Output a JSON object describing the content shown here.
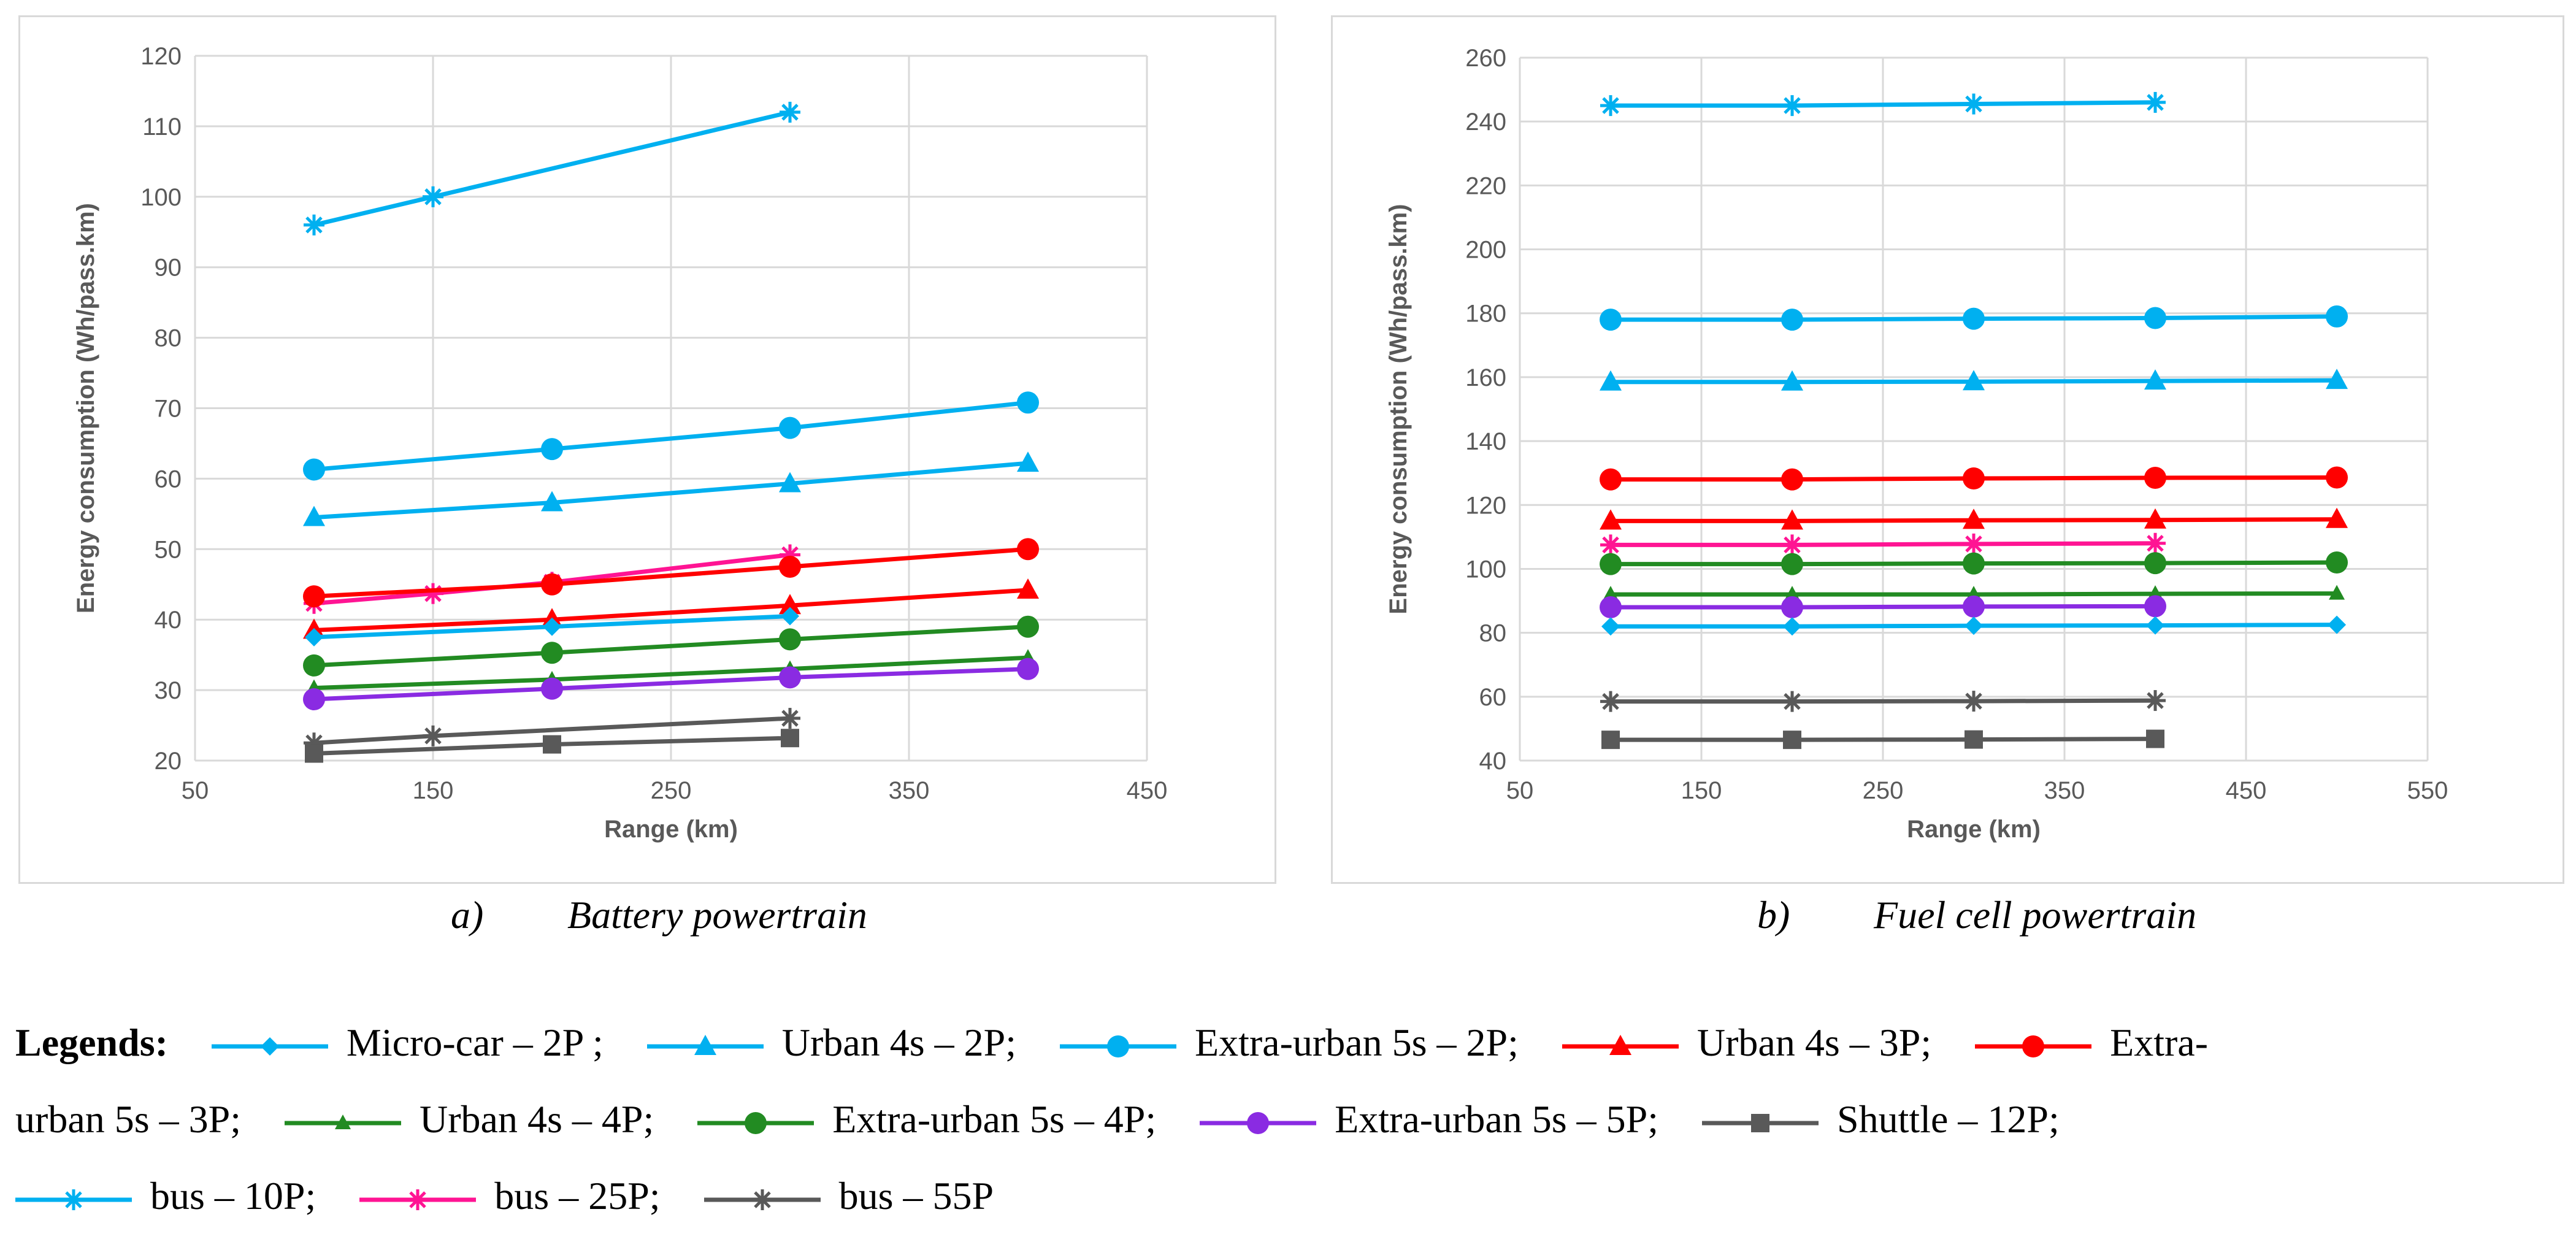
{
  "chart_data": [
    {
      "type": "line",
      "caption_letter": "a)",
      "caption_text": "Battery powertrain",
      "xlabel": "Range (km)",
      "ylabel": "Energy consumption (Wh/pass.km)",
      "xlim": [
        50,
        450
      ],
      "ylim": [
        20,
        120
      ],
      "xticks": [
        50,
        150,
        250,
        350,
        450
      ],
      "yticks": [
        20,
        30,
        40,
        50,
        60,
        70,
        80,
        90,
        100,
        110,
        120
      ],
      "grid": true,
      "series": [
        {
          "name": "bus – 10P",
          "color": "#00b0f0",
          "marker": "asterisk",
          "points": [
            [
              100,
              96
            ],
            [
              150,
              100
            ],
            [
              300,
              112
            ]
          ]
        },
        {
          "name": "Extra-urban 5s – 2P",
          "color": "#00b0f0",
          "marker": "circle",
          "points": [
            [
              100,
              61.3
            ],
            [
              200,
              64.2
            ],
            [
              300,
              67.2
            ],
            [
              400,
              70.8
            ]
          ]
        },
        {
          "name": "Urban 4s – 2P",
          "color": "#00b0f0",
          "marker": "triangle",
          "points": [
            [
              100,
              54.5
            ],
            [
              200,
              56.6
            ],
            [
              300,
              59.3
            ],
            [
              400,
              62.2
            ]
          ]
        },
        {
          "name": "bus – 25P",
          "color": "#ff1493",
          "marker": "asterisk",
          "points": [
            [
              100,
              42.3
            ],
            [
              150,
              43.7
            ],
            [
              200,
              45.3
            ],
            [
              300,
              49.2
            ]
          ]
        },
        {
          "name": "Extra-urban 5s – 3P",
          "color": "#ff0000",
          "marker": "circle",
          "points": [
            [
              100,
              43.3
            ],
            [
              200,
              45.0
            ],
            [
              300,
              47.5
            ],
            [
              400,
              50.0
            ]
          ]
        },
        {
          "name": "Urban 4s – 3P",
          "color": "#ff0000",
          "marker": "triangle",
          "points": [
            [
              100,
              38.5
            ],
            [
              200,
              40.0
            ],
            [
              300,
              42.0
            ],
            [
              400,
              44.2
            ]
          ]
        },
        {
          "name": "Micro-car – 2P",
          "color": "#00b0f0",
          "marker": "diamond",
          "points": [
            [
              100,
              37.5
            ],
            [
              200,
              39.0
            ],
            [
              300,
              40.5
            ]
          ]
        },
        {
          "name": "Extra-urban 5s – 4P",
          "color": "#228b22",
          "marker": "circle",
          "points": [
            [
              100,
              33.5
            ],
            [
              200,
              35.3
            ],
            [
              300,
              37.2
            ],
            [
              400,
              39.0
            ]
          ]
        },
        {
          "name": "Urban 4s – 4P",
          "color": "#228b22",
          "marker": "triangle-small",
          "points": [
            [
              100,
              30.3
            ],
            [
              200,
              31.5
            ],
            [
              300,
              33.0
            ],
            [
              400,
              34.6
            ]
          ]
        },
        {
          "name": "Extra-urban 5s – 5P",
          "color": "#8a2be2",
          "marker": "circle",
          "points": [
            [
              100,
              28.7
            ],
            [
              200,
              30.2
            ],
            [
              300,
              31.8
            ],
            [
              400,
              33.0
            ]
          ]
        },
        {
          "name": "bus – 55P",
          "color": "#595959",
          "marker": "asterisk",
          "points": [
            [
              100,
              22.5
            ],
            [
              150,
              23.5
            ],
            [
              300,
              26.0
            ]
          ]
        },
        {
          "name": "Shuttle – 12P",
          "color": "#595959",
          "marker": "square",
          "points": [
            [
              100,
              21.0
            ],
            [
              200,
              22.3
            ],
            [
              300,
              23.2
            ]
          ]
        }
      ]
    },
    {
      "type": "line",
      "caption_letter": "b)",
      "caption_text": "Fuel cell powertrain",
      "xlabel": "Range (km)",
      "ylabel": "Energy consumption (Wh/pass.km)",
      "xlim": [
        50,
        550
      ],
      "ylim": [
        40,
        260
      ],
      "xticks": [
        50,
        150,
        250,
        350,
        450,
        550
      ],
      "yticks": [
        40,
        60,
        80,
        100,
        120,
        140,
        160,
        180,
        200,
        220,
        240,
        260
      ],
      "grid": true,
      "series": [
        {
          "name": "bus – 10P",
          "color": "#00b0f0",
          "marker": "asterisk",
          "points": [
            [
              100,
              245
            ],
            [
              200,
              245
            ],
            [
              300,
              245.5
            ],
            [
              400,
              246
            ]
          ]
        },
        {
          "name": "Extra-urban 5s – 2P",
          "color": "#00b0f0",
          "marker": "circle",
          "points": [
            [
              100,
              178
            ],
            [
              200,
              178
            ],
            [
              300,
              178.3
            ],
            [
              400,
              178.5
            ],
            [
              500,
              179
            ]
          ]
        },
        {
          "name": "Urban 4s – 2P",
          "color": "#00b0f0",
          "marker": "triangle",
          "points": [
            [
              100,
              158.5
            ],
            [
              200,
              158.5
            ],
            [
              300,
              158.6
            ],
            [
              400,
              158.8
            ],
            [
              500,
              159
            ]
          ]
        },
        {
          "name": "Extra-urban 5s – 3P",
          "color": "#ff0000",
          "marker": "circle",
          "points": [
            [
              100,
              128
            ],
            [
              200,
              128
            ],
            [
              300,
              128.3
            ],
            [
              400,
              128.5
            ],
            [
              500,
              128.6
            ]
          ]
        },
        {
          "name": "Urban 4s – 3P",
          "color": "#ff0000",
          "marker": "triangle",
          "points": [
            [
              100,
              115
            ],
            [
              200,
              115
            ],
            [
              300,
              115.2
            ],
            [
              400,
              115.3
            ],
            [
              500,
              115.5
            ]
          ]
        },
        {
          "name": "bus – 25P",
          "color": "#ff1493",
          "marker": "asterisk",
          "points": [
            [
              100,
              107.5
            ],
            [
              200,
              107.5
            ],
            [
              300,
              107.8
            ],
            [
              400,
              108
            ]
          ]
        },
        {
          "name": "Extra-urban 5s – 4P",
          "color": "#228b22",
          "marker": "circle",
          "points": [
            [
              100,
              101.5
            ],
            [
              200,
              101.5
            ],
            [
              300,
              101.7
            ],
            [
              400,
              101.8
            ],
            [
              500,
              102
            ]
          ]
        },
        {
          "name": "Urban 4s – 4P",
          "color": "#228b22",
          "marker": "triangle-small",
          "points": [
            [
              100,
              92
            ],
            [
              200,
              92
            ],
            [
              300,
              92
            ],
            [
              400,
              92.2
            ],
            [
              500,
              92.3
            ]
          ]
        },
        {
          "name": "Extra-urban 5s – 5P",
          "color": "#8a2be2",
          "marker": "circle",
          "points": [
            [
              100,
              88
            ],
            [
              200,
              88
            ],
            [
              300,
              88.2
            ],
            [
              400,
              88.3
            ]
          ]
        },
        {
          "name": "Micro-car – 2P",
          "color": "#00b0f0",
          "marker": "diamond",
          "points": [
            [
              100,
              82
            ],
            [
              200,
              82
            ],
            [
              300,
              82.2
            ],
            [
              400,
              82.3
            ],
            [
              500,
              82.5
            ]
          ]
        },
        {
          "name": "bus – 55P",
          "color": "#595959",
          "marker": "asterisk",
          "points": [
            [
              100,
              58.5
            ],
            [
              200,
              58.5
            ],
            [
              300,
              58.6
            ],
            [
              400,
              58.8
            ]
          ]
        },
        {
          "name": "Shuttle – 12P",
          "color": "#595959",
          "marker": "square",
          "points": [
            [
              100,
              46.5
            ],
            [
              200,
              46.5
            ],
            [
              300,
              46.6
            ],
            [
              400,
              46.8
            ]
          ]
        }
      ]
    }
  ],
  "legend": {
    "title": "Legends:",
    "entries": [
      {
        "label": "Micro-car – 2P ;",
        "color": "#00b0f0",
        "marker": "diamond"
      },
      {
        "label": "Urban 4s – 2P;",
        "color": "#00b0f0",
        "marker": "triangle"
      },
      {
        "label": "Extra-urban 5s – 2P;",
        "color": "#00b0f0",
        "marker": "circle"
      },
      {
        "label": "Urban 4s – 3P;",
        "color": "#ff0000",
        "marker": "triangle"
      },
      {
        "label": "Extra-",
        "color": "#ff0000",
        "marker": "circle"
      },
      {
        "label": "urban 5s – 3P;",
        "color": "",
        "marker": ""
      },
      {
        "label": "Urban 4s – 4P;",
        "color": "#228b22",
        "marker": "triangle-small"
      },
      {
        "label": "Extra-urban 5s – 4P;",
        "color": "#228b22",
        "marker": "circle"
      },
      {
        "label": "Extra-urban 5s – 5P;",
        "color": "#8a2be2",
        "marker": "circle"
      },
      {
        "label": "Shuttle – 12P;",
        "color": "#595959",
        "marker": "square"
      },
      {
        "label": "bus – 10P;",
        "color": "#00b0f0",
        "marker": "asterisk"
      },
      {
        "label": "bus – 25P;",
        "color": "#ff1493",
        "marker": "asterisk"
      },
      {
        "label": "bus – 55P",
        "color": "#595959",
        "marker": "asterisk"
      }
    ]
  }
}
